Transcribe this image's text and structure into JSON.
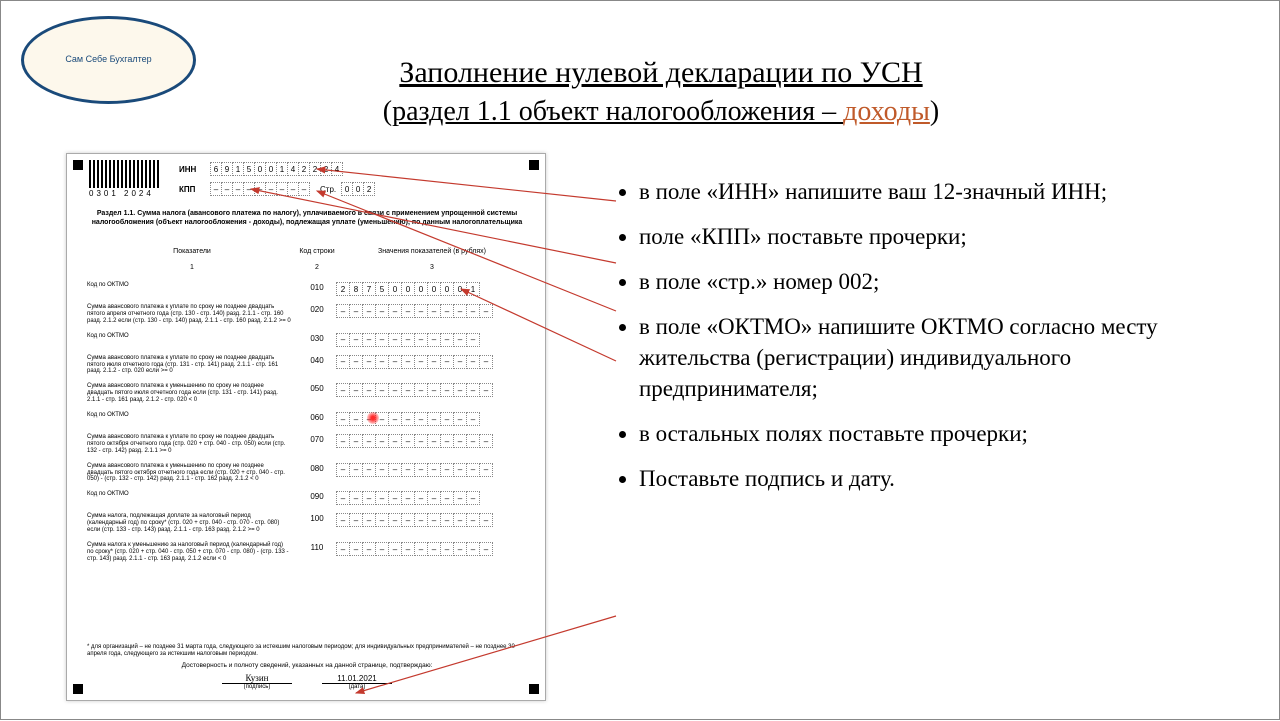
{
  "logo_text": "Сам Себе Бухгалтер",
  "title": {
    "main": "Заполнение нулевой декларации по УСН",
    "sub_prefix": "(",
    "sub_text": "раздел 1.1  объект налогообложения – ",
    "sub_highlight": "доходы",
    "sub_suffix": ")"
  },
  "form": {
    "barcode_number": "0301 2024",
    "inn_label": "ИНН",
    "inn_cells": [
      "6",
      "9",
      "1",
      "5",
      "0",
      "0",
      "1",
      "4",
      "2",
      "2",
      "2",
      "4"
    ],
    "kpp_label": "КПП",
    "kpp_cells": [
      "–",
      "–",
      "–",
      "–",
      "–",
      "–",
      "–",
      "–",
      "–"
    ],
    "str_label": "Стр.",
    "str_cells": [
      "0",
      "0",
      "2"
    ],
    "section_title": "Раздел 1.1. Сумма налога (авансового платежа по налогу), уплачиваемого в связи с применением упрощенной системы налогообложения (объект налогообложения - доходы), подлежащая уплате (уменьшению), по данным налогоплательщика",
    "col1": "Показатели",
    "col2": "Код строки",
    "col3": "Значения показателей (в рублях)",
    "coln1": "1",
    "coln2": "2",
    "coln3": "3",
    "rows": [
      {
        "label": "Код по ОКТМО",
        "code": "010",
        "cells": [
          "2",
          "8",
          "7",
          "5",
          "0",
          "0",
          "0",
          "0",
          "0",
          "0",
          "1"
        ]
      },
      {
        "label": "Сумма авансового платежа к уплате по сроку не позднее двадцать пятого апреля отчетного года (стр. 130 - стр. 140) разд. 2.1.1 - стр. 160 разд. 2.1.2 если (стр. 130 - стр. 140) разд. 2.1.1 - стр. 160 разд. 2.1.2 >= 0",
        "code": "020",
        "cells": [
          "–",
          "–",
          "–",
          "–",
          "–",
          "–",
          "–",
          "–",
          "–",
          "–",
          "–",
          "–"
        ]
      },
      {
        "label": "Код по ОКТМО",
        "code": "030",
        "cells": [
          "–",
          "–",
          "–",
          "–",
          "–",
          "–",
          "–",
          "–",
          "–",
          "–",
          "–"
        ]
      },
      {
        "label": "Сумма авансового платежа к уплате по сроку не позднее двадцать пятого июля отчетного года (стр. 131 - стр. 141) разд. 2.1.1 - стр. 161 разд. 2.1.2 - стр. 020 если >= 0",
        "code": "040",
        "cells": [
          "–",
          "–",
          "–",
          "–",
          "–",
          "–",
          "–",
          "–",
          "–",
          "–",
          "–",
          "–"
        ]
      },
      {
        "label": "Сумма авансового платежа к уменьшению по сроку не позднее двадцать пятого июля отчетного года если (стр. 131 - стр. 141) разд. 2.1.1 - стр. 161 разд. 2.1.2 - стр. 020 < 0",
        "code": "050",
        "cells": [
          "–",
          "–",
          "–",
          "–",
          "–",
          "–",
          "–",
          "–",
          "–",
          "–",
          "–",
          "–"
        ]
      },
      {
        "label": "Код по ОКТМО",
        "code": "060",
        "cells": [
          "–",
          "–",
          "–",
          "–",
          "–",
          "–",
          "–",
          "–",
          "–",
          "–",
          "–"
        ]
      },
      {
        "label": "Сумма авансового платежа к уплате по сроку не позднее двадцать пятого октября отчетного года (стр. 020 + стр. 040 - стр. 050) если (стр. 132 - стр. 142) разд. 2.1.1 >= 0",
        "code": "070",
        "cells": [
          "–",
          "–",
          "–",
          "–",
          "–",
          "–",
          "–",
          "–",
          "–",
          "–",
          "–",
          "–"
        ]
      },
      {
        "label": "Сумма авансового платежа к уменьшению по сроку не позднее двадцать пятого октября отчетного года если (стр. 020 + стр. 040 - стр. 050) - (стр. 132 - стр. 142) разд. 2.1.1 - стр. 162 разд. 2.1.2 < 0",
        "code": "080",
        "cells": [
          "–",
          "–",
          "–",
          "–",
          "–",
          "–",
          "–",
          "–",
          "–",
          "–",
          "–",
          "–"
        ]
      },
      {
        "label": "Код по ОКТМО",
        "code": "090",
        "cells": [
          "–",
          "–",
          "–",
          "–",
          "–",
          "–",
          "–",
          "–",
          "–",
          "–",
          "–"
        ]
      },
      {
        "label": "Сумма налога, подлежащая доплате за налоговый период (календарный год) по сроку* (стр. 020 + стр. 040 - стр. 070 - стр. 080) если (стр. 133 - стр. 143) разд. 2.1.1 - стр. 163 разд. 2.1.2 >= 0",
        "code": "100",
        "cells": [
          "–",
          "–",
          "–",
          "–",
          "–",
          "–",
          "–",
          "–",
          "–",
          "–",
          "–",
          "–"
        ]
      },
      {
        "label": "Сумма налога к уменьшению за налоговый период (календарный год) по сроку* (стр. 020 + стр. 040 - стр. 050 + стр. 070 - стр. 080) - (стр. 133 - стр. 143) разд. 2.1.1 - стр. 163 разд. 2.1.2 если < 0",
        "code": "110",
        "cells": [
          "–",
          "–",
          "–",
          "–",
          "–",
          "–",
          "–",
          "–",
          "–",
          "–",
          "–",
          "–"
        ]
      }
    ],
    "footnote": "* для организаций – не позднее 31 марта года, следующего за истекшим налоговым периодом;\n  для индивидуальных предпринимателей – не позднее 30 апреля года, следующего за истекшим налоговым периодом.",
    "confirm_text": "Достоверность и полноту сведений, указанных на данной странице, подтверждаю:",
    "signature": "Кузин",
    "sig_caption": "(подпись)",
    "date": "11.01.2021",
    "date_caption": "(дата)"
  },
  "bullets": [
    "в поле «ИНН» напишите ваш 12-значный ИНН;",
    "поле «КПП»  поставьте прочерки;",
    "в поле «стр.» номер 002;",
    "в поле «ОКТМО» напишите ОКТМО согласно месту жительства (регистрации) индивидуального предпринимателя;",
    "в остальных полях поставьте прочерки;",
    "Поставьте подпись и дату."
  ],
  "arrow_color": "#c43a2e"
}
